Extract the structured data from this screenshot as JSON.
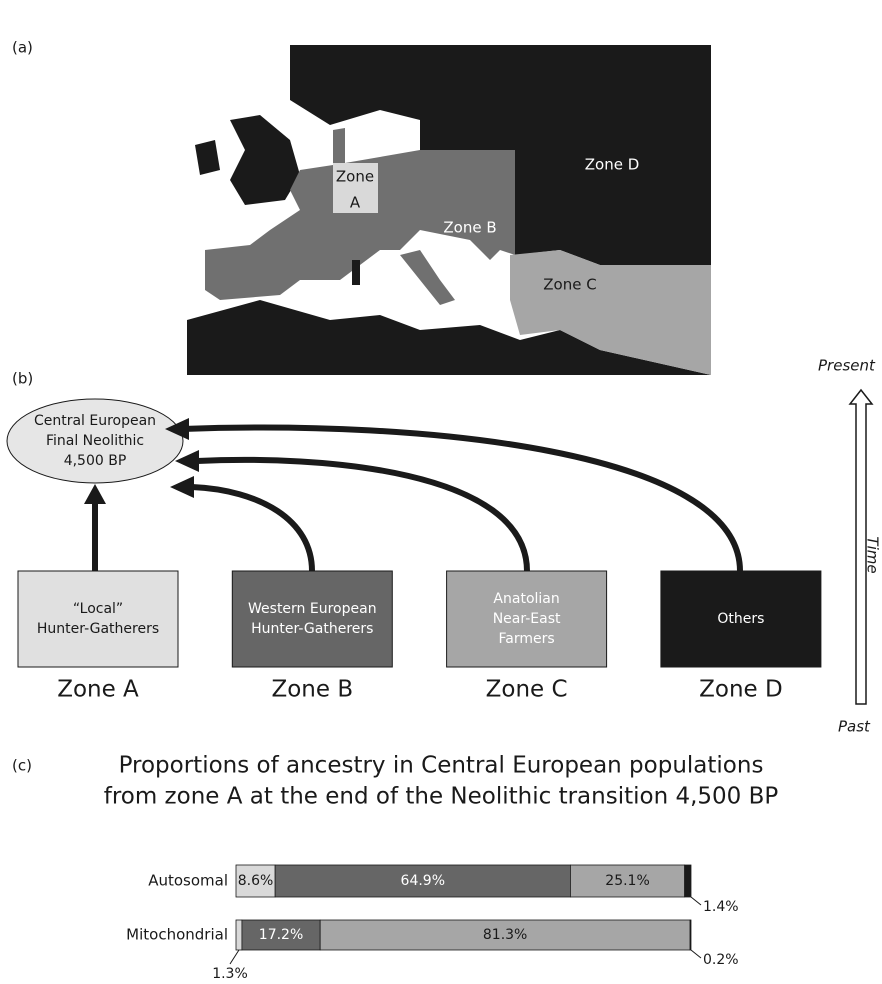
{
  "panel_a": {
    "label": "(a)",
    "zone_a": [
      "Zone",
      "A"
    ],
    "zone_b": "Zone B",
    "zone_c": "Zone C",
    "zone_d": "Zone D"
  },
  "panel_b": {
    "label": "(b)",
    "target": [
      "Central European",
      "Final Neolithic",
      "4,500 BP"
    ],
    "sources": [
      {
        "lines": [
          "“Local”",
          "Hunter-Gatherers"
        ],
        "zone": "Zone A"
      },
      {
        "lines": [
          "Western European",
          "Hunter-Gatherers"
        ],
        "zone": "Zone B"
      },
      {
        "lines": [
          "Anatolian",
          "Near-East",
          "Farmers"
        ],
        "zone": "Zone C"
      },
      {
        "lines": [
          "Others"
        ],
        "zone": "Zone D"
      }
    ],
    "time_axis": {
      "top": "Present",
      "label": "Time",
      "bottom": "Past"
    }
  },
  "chart_data": {
    "type": "stacked-bar",
    "panel_label": "(c)",
    "title": [
      "Proportions of ancestry in Central European populations",
      "from zone A at the end of the Neolithic transition 4,500 BP"
    ],
    "categories": [
      "Autosomal",
      "Mitochondrial"
    ],
    "series": [
      {
        "color": "#d9d9d9",
        "values": [
          8.6,
          1.3
        ],
        "value_labels": [
          "8.6%",
          "1.3%"
        ]
      },
      {
        "color": "#666666",
        "values": [
          64.9,
          17.2
        ],
        "value_labels": [
          "64.9%",
          "17.2%"
        ]
      },
      {
        "color": "#a6a6a6",
        "values": [
          25.1,
          81.3
        ],
        "value_labels": [
          "25.1%",
          "81.3%"
        ]
      },
      {
        "color": "#1a1a1a",
        "values": [
          1.4,
          0.2
        ],
        "value_labels": [
          "1.4%",
          "0.2%"
        ]
      }
    ]
  }
}
